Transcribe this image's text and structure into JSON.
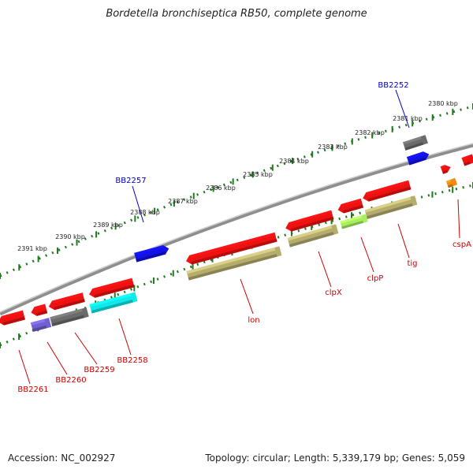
{
  "title": "Bordetella bronchiseptica RB50, complete genome",
  "footer": {
    "accession": "Accession: NC_002927",
    "summary": "Topology: circular; Length: 5,339,179 bp; Genes: 5,059"
  },
  "colors": {
    "red": "#ee1111",
    "olive": "#b5ad6e",
    "cyan": "#11e8e8",
    "blue": "#1212e6",
    "gray": "#6b6b6b",
    "purple": "#7060d0",
    "lime": "#a6f060",
    "orange": "#f08a10",
    "backbone": "#8e8e8e",
    "tick": "#1f7a1f",
    "label_red": "#cc0000",
    "label_blue": "#0000cc"
  },
  "scale_ticks": [
    {
      "label": "2380 kbp"
    },
    {
      "label": "2381 kbp"
    },
    {
      "label": "2382 kbp"
    },
    {
      "label": "2383 kbp"
    },
    {
      "label": "2384 kbp"
    },
    {
      "label": "2385 kbp"
    },
    {
      "label": "2386 kbp"
    },
    {
      "label": "2387 kbp"
    },
    {
      "label": "2388 kbp"
    },
    {
      "label": "2389 kbp"
    },
    {
      "label": "2390 kbp"
    },
    {
      "label": "2391 kbp"
    }
  ],
  "gene_labels": [
    {
      "text": "BB2252",
      "color": "blue"
    },
    {
      "text": "BB2257",
      "color": "blue"
    },
    {
      "text": "cspA",
      "color": "red"
    },
    {
      "text": "tig",
      "color": "red"
    },
    {
      "text": "clpP",
      "color": "red"
    },
    {
      "text": "clpX",
      "color": "red"
    },
    {
      "text": "lon",
      "color": "red"
    },
    {
      "text": "BB2258",
      "color": "red"
    },
    {
      "text": "BB2259",
      "color": "red"
    },
    {
      "text": "BB2260",
      "color": "red"
    },
    {
      "text": "BB2261",
      "color": "red"
    }
  ]
}
